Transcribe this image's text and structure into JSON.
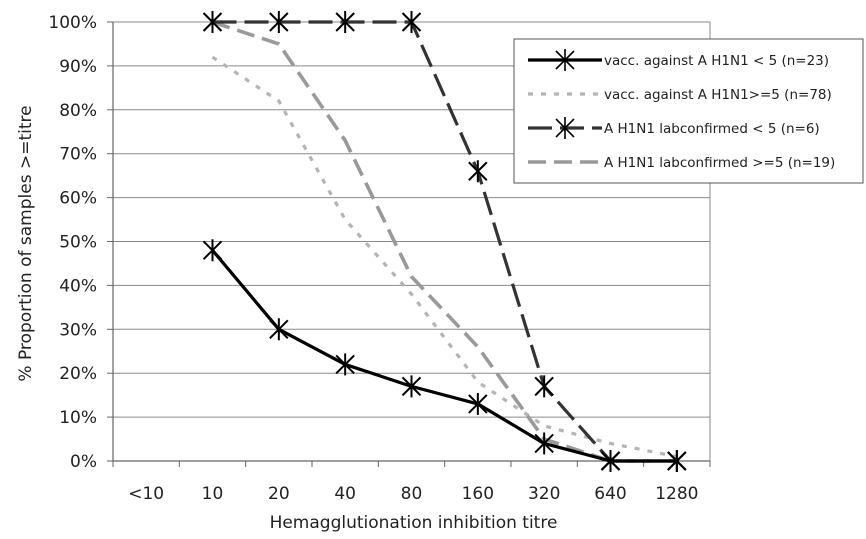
{
  "chart_data": {
    "type": "line",
    "title": "",
    "xlabel": "Hemagglutionation inhibition titre",
    "ylabel": "% Proportion of samples >=titre",
    "categories": [
      "<10",
      "10",
      "20",
      "40",
      "80",
      "160",
      "320",
      "640",
      "1280"
    ],
    "y_tick_labels": [
      "0%",
      "10%",
      "20%",
      "30%",
      "40%",
      "50%",
      "60%",
      "70%",
      "80%",
      "90%",
      "100%"
    ],
    "ylim": [
      0,
      100
    ],
    "grid": "horizontal",
    "legend_position": "top-right",
    "series": [
      {
        "name": "vacc. against A H1N1 < 5 (n=23)",
        "color": "#000000",
        "style": "solid",
        "marker": "asterisk",
        "values": [
          null,
          48,
          30,
          22,
          17,
          13,
          4,
          0,
          0
        ]
      },
      {
        "name": "vacc. against A H1N1>=5 (n=78)",
        "color": "#b4b4b4",
        "style": "dotted",
        "marker": "none",
        "values": [
          null,
          92,
          82,
          55,
          38,
          18,
          8,
          4,
          1
        ]
      },
      {
        "name": "A H1N1 labconfirmed < 5 (n=6)",
        "color": "#333333",
        "style": "dashed",
        "marker": "asterisk",
        "values": [
          null,
          100,
          100,
          100,
          100,
          66,
          17,
          0,
          0
        ]
      },
      {
        "name": "A H1N1 labconfirmed >=5 (n=19)",
        "color": "#999999",
        "style": "long-dashed",
        "marker": "none",
        "values": [
          null,
          100,
          95,
          73,
          42,
          26,
          5,
          0,
          0
        ]
      }
    ]
  }
}
